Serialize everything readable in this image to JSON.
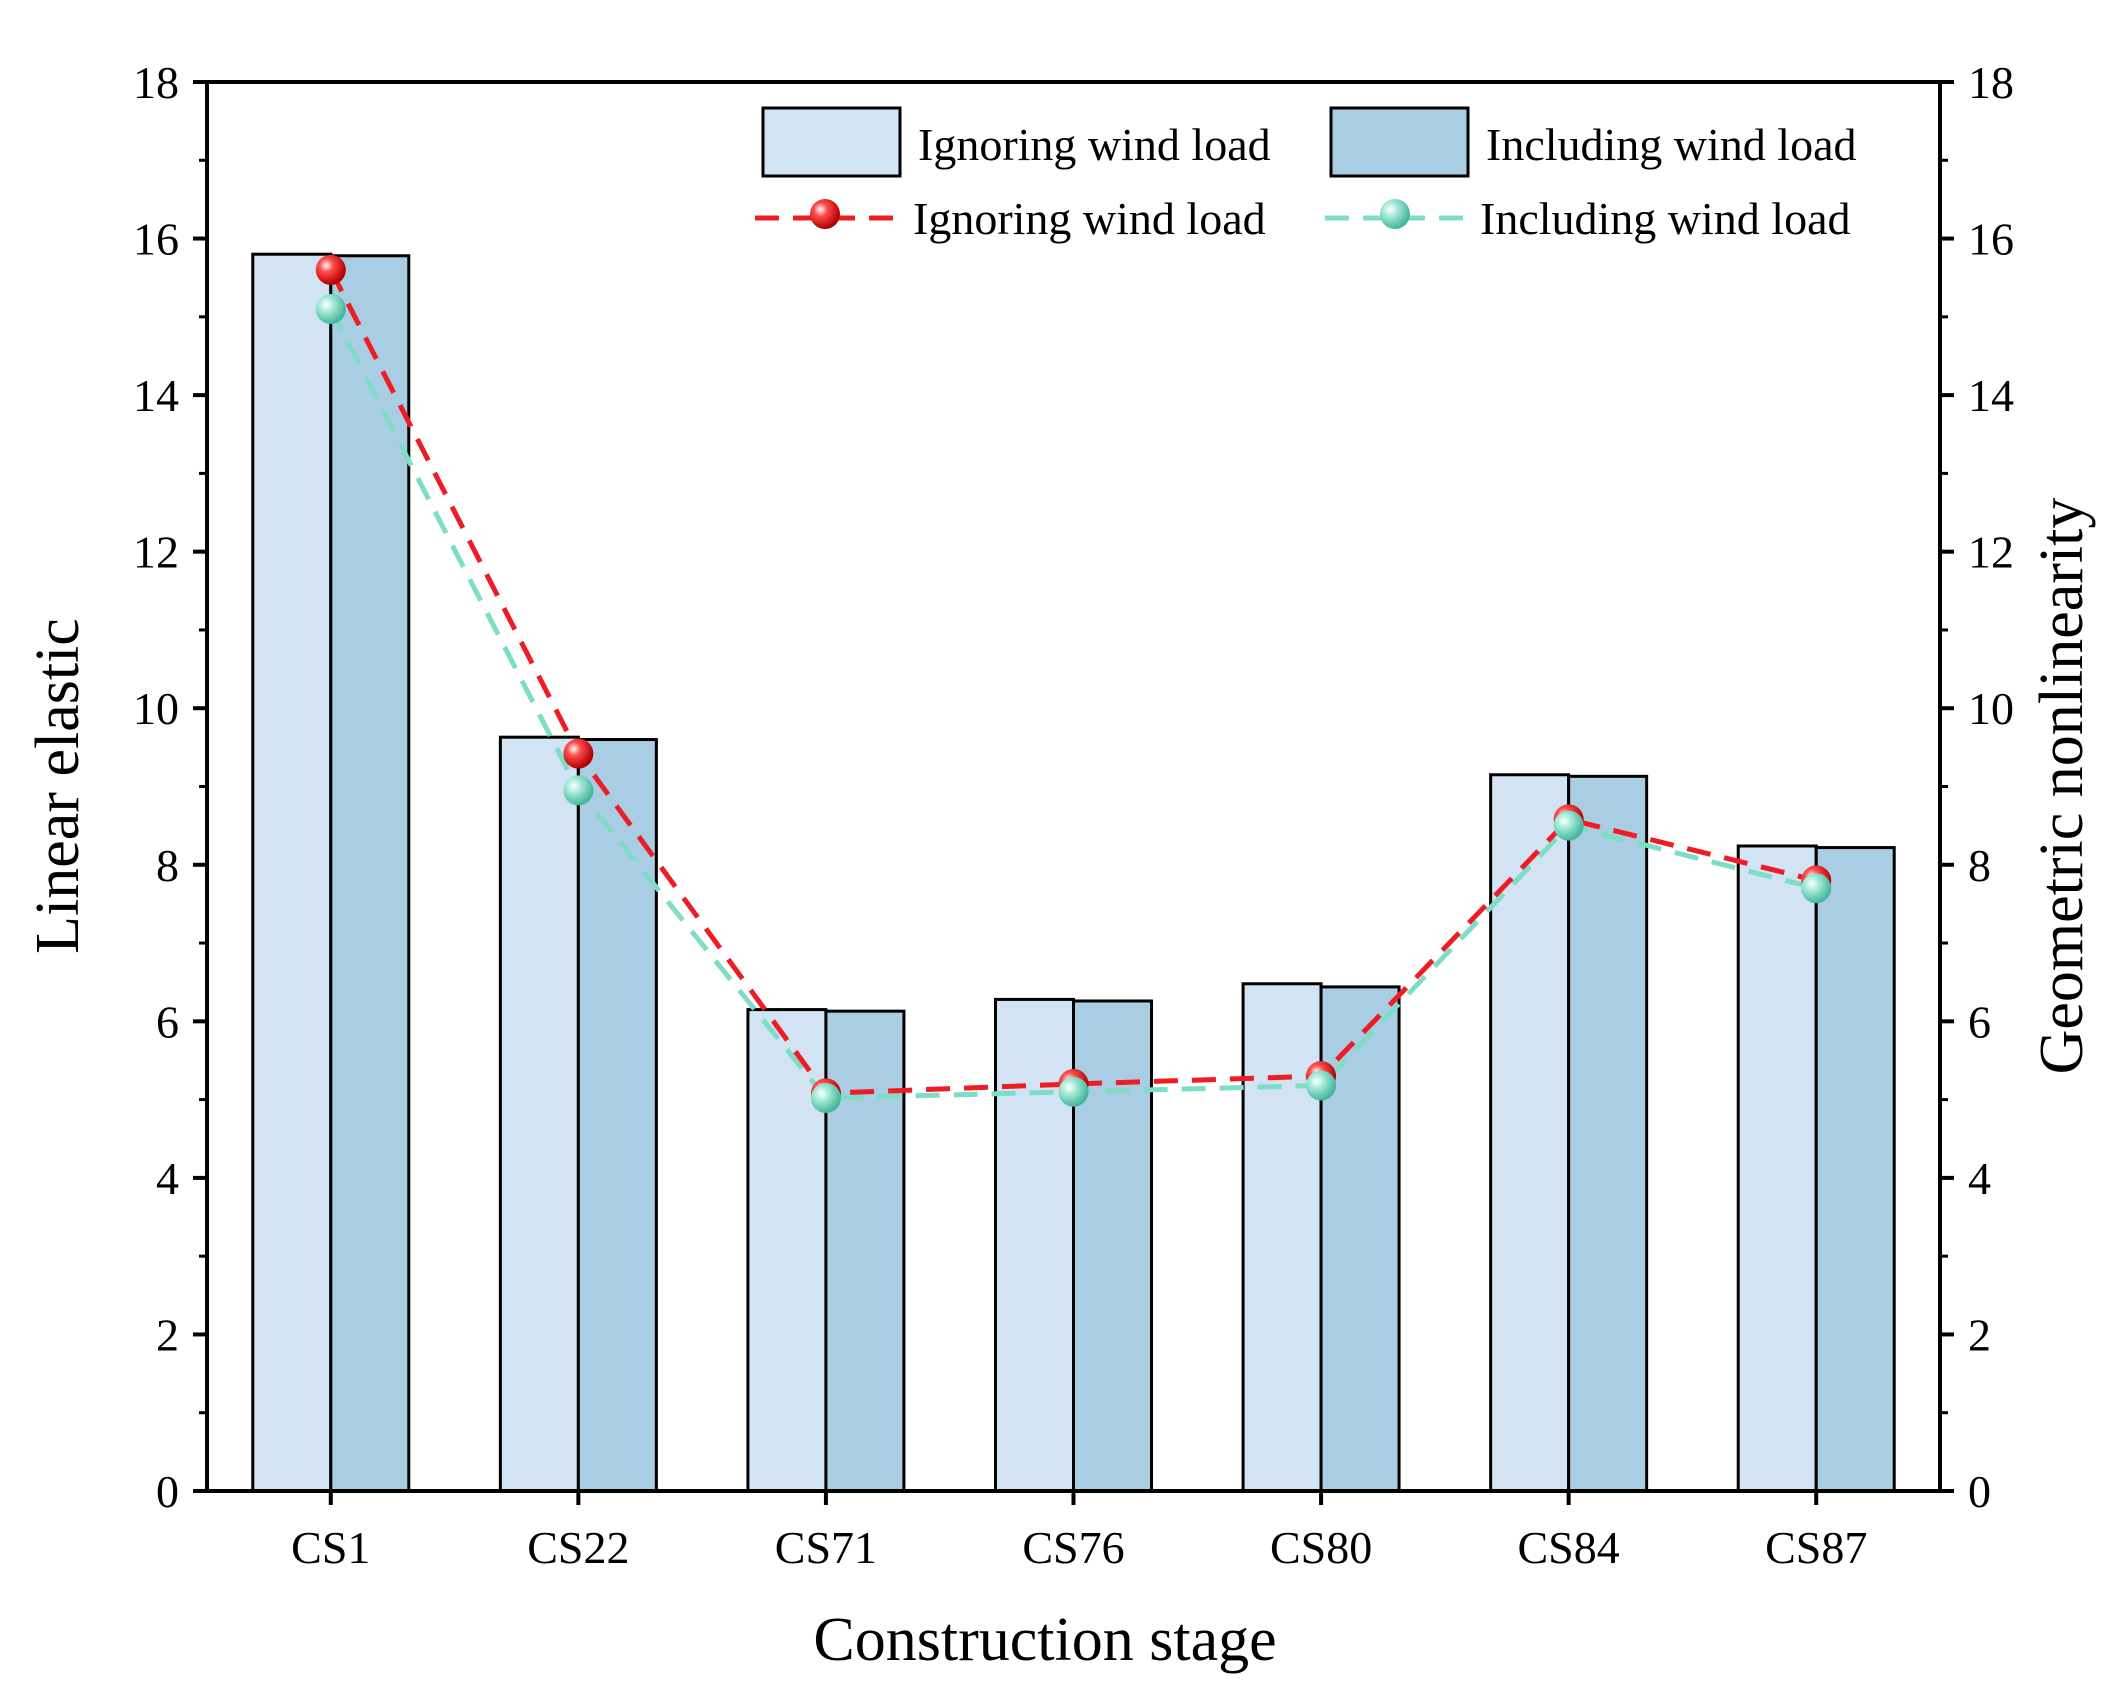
{
  "chart_data": {
    "type": "bar",
    "title": "",
    "xlabel": "Construction stage",
    "ylabel": "Linear elastic",
    "y2label": "Geometric nonlinearity",
    "ylim": [
      0,
      18
    ],
    "y2lim": [
      0,
      18
    ],
    "yticks": [
      0,
      2,
      4,
      6,
      8,
      10,
      12,
      14,
      16,
      18
    ],
    "y2ticks": [
      0,
      2,
      4,
      6,
      8,
      10,
      12,
      14,
      16,
      18
    ],
    "categories": [
      "CS1",
      "CS22",
      "CS71",
      "CS76",
      "CS80",
      "CS84",
      "CS87"
    ],
    "bar_series": [
      {
        "name": "Ignoring wind load",
        "axis": "left",
        "color": "#d2e3f3",
        "values": [
          15.8,
          9.63,
          6.15,
          6.28,
          6.48,
          9.15,
          8.24
        ]
      },
      {
        "name": "Including wind load",
        "axis": "left",
        "color": "#a9cde3",
        "values": [
          15.78,
          9.6,
          6.13,
          6.26,
          6.44,
          9.13,
          8.22
        ]
      }
    ],
    "line_series": [
      {
        "name": "Ignoring wind load",
        "axis": "right",
        "color": "#ee1c25",
        "values": [
          15.6,
          9.42,
          5.08,
          5.2,
          5.3,
          8.58,
          7.8
        ]
      },
      {
        "name": "Including wind load",
        "axis": "right",
        "color": "#7fdcc6",
        "values": [
          15.1,
          8.95,
          5.02,
          5.1,
          5.18,
          8.5,
          7.7
        ]
      }
    ],
    "legend": {
      "position": "top-right",
      "entries": [
        {
          "label": "Ignoring wind load",
          "kind": "bar"
        },
        {
          "label": "Including wind load",
          "kind": "bar"
        },
        {
          "label": "Ignoring wind load",
          "kind": "line"
        },
        {
          "label": "Including wind load",
          "kind": "line"
        }
      ]
    },
    "grid": false
  }
}
